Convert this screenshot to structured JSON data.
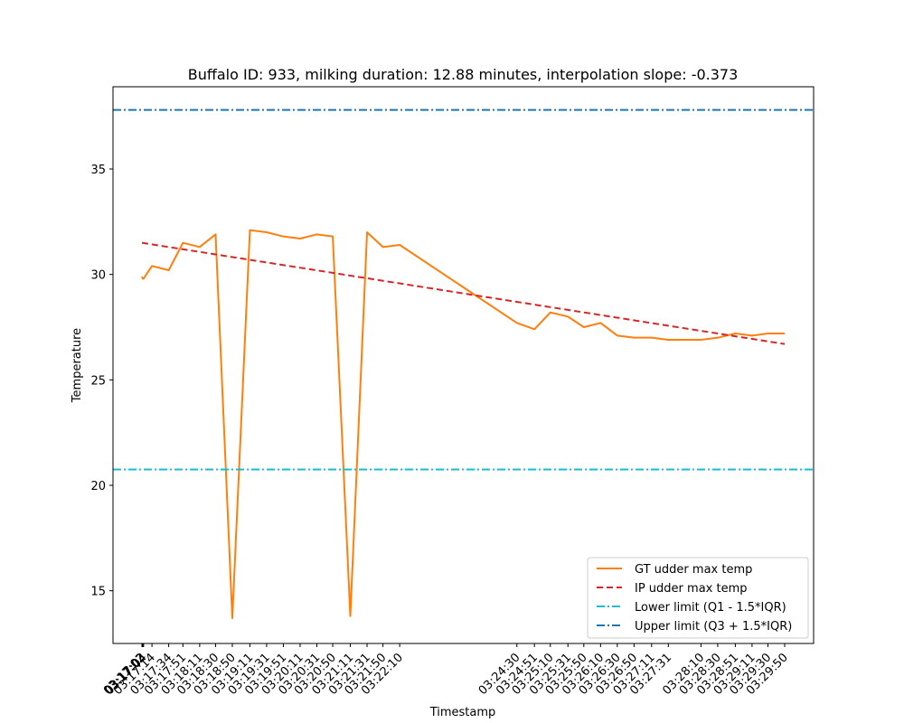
{
  "chart_data": {
    "type": "line",
    "title": "Buffalo ID: 933, milking duration: 12.88 minutes, interpolation slope: -0.373",
    "xlabel": "Timestamp",
    "ylabel": "Temperature",
    "ylim": [
      12.5,
      38.9
    ],
    "yticks": [
      15,
      20,
      25,
      30,
      35
    ],
    "xtick_labels": [
      "03:17:02",
      "03:17:03",
      "03:17:04",
      "03:17:14",
      "03:17:34",
      "03:17:51",
      "03:18:11",
      "03:18:30",
      "03:18:50",
      "03:19:11",
      "03:19:31",
      "03:19:51",
      "03:20:11",
      "03:20:31",
      "03:20:50",
      "03:21:11",
      "03:21:31",
      "03:21:50",
      "03:22:10",
      "03:24:30",
      "03:24:51",
      "03:25:10",
      "03:25:31",
      "03:25:50",
      "03:26:10",
      "03:26:30",
      "03:26:50",
      "03:27:11",
      "03:27:31",
      "03:28:10",
      "03:28:30",
      "03:28:51",
      "03:29:11",
      "03:29:30",
      "03:29:50"
    ],
    "grid": false,
    "legend_position": "bottom-right",
    "series": [
      {
        "name": "GT udder max temp",
        "color": "#ff7f0e",
        "style": "solid",
        "x": [
          "03:17:02",
          "03:17:03",
          "03:17:04",
          "03:17:14",
          "03:17:34",
          "03:17:51",
          "03:18:11",
          "03:18:30",
          "03:18:50",
          "03:19:11",
          "03:19:31",
          "03:19:51",
          "03:20:11",
          "03:20:31",
          "03:20:50",
          "03:21:11",
          "03:21:31",
          "03:21:50",
          "03:22:10",
          "03:24:30",
          "03:24:51",
          "03:25:10",
          "03:25:31",
          "03:25:50",
          "03:26:10",
          "03:26:30",
          "03:26:50",
          "03:27:11",
          "03:27:31",
          "03:28:10",
          "03:28:30",
          "03:28:51",
          "03:29:11",
          "03:29:30",
          "03:29:50"
        ],
        "y": [
          29.9,
          29.8,
          29.8,
          30.4,
          30.2,
          31.5,
          31.3,
          31.9,
          13.7,
          32.1,
          32.0,
          31.8,
          31.7,
          31.9,
          31.8,
          13.8,
          32.0,
          31.3,
          31.4,
          27.7,
          27.4,
          28.2,
          28.0,
          27.5,
          27.7,
          27.1,
          27.0,
          27.0,
          26.9,
          26.9,
          27.0,
          27.2,
          27.1,
          27.2,
          27.2
        ]
      },
      {
        "name": "IP udder max temp",
        "color": "#d62728",
        "style": "dashed",
        "x": [
          "03:17:02",
          "03:29:50"
        ],
        "y": [
          31.5,
          26.7
        ]
      },
      {
        "name": "Lower limit (Q1 - 1.5*IQR)",
        "color": "#17becf",
        "style": "dashdot",
        "y_const": 20.75
      },
      {
        "name": "Upper limit (Q3 + 1.5*IQR)",
        "color": "#1f77b4",
        "style": "dashdot",
        "y_const": 37.8
      }
    ]
  }
}
